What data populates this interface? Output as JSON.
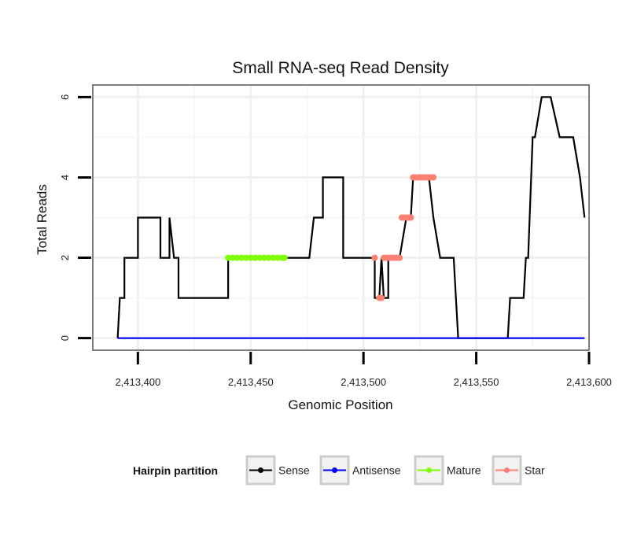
{
  "chart_data": {
    "type": "line",
    "title": "Small RNA-seq Read Density",
    "xlabel": "Genomic Position",
    "ylabel": "Total Reads",
    "xlim": [
      2413380,
      2413600
    ],
    "ylim": [
      -0.3,
      6.3
    ],
    "grid": true,
    "legend_position": "bottom",
    "x_ticks": [
      2413400,
      2413450,
      2413500,
      2413550,
      2413600
    ],
    "x_tick_labels": [
      "2,413,400",
      "2,413,450",
      "2,413,500",
      "2,413,550",
      "2,413,600"
    ],
    "y_ticks": [
      0,
      2,
      4,
      6
    ],
    "y_tick_labels": [
      "0",
      "2",
      "4",
      "6"
    ],
    "legend": {
      "title": "Hairpin partition",
      "entries": [
        "Sense",
        "Antisense",
        "Mature",
        "Star"
      ]
    },
    "series": [
      {
        "name": "Sense",
        "color": "#000000",
        "style": "line",
        "x": [
          2413391,
          2413392,
          2413392,
          2413394,
          2413394,
          2413400,
          2413400,
          2413407,
          2413407,
          2413410,
          2413410,
          2413413,
          2413414,
          2413414,
          2413416,
          2413418,
          2413418,
          2413440,
          2413440,
          2413463,
          2413468,
          2413476,
          2413478,
          2413481,
          2413482,
          2413482,
          2413490,
          2413491,
          2413491,
          2413501,
          2413505,
          2413505,
          2413507,
          2413508,
          2413509,
          2413511,
          2413511,
          2413514,
          2413516,
          2413519,
          2413521,
          2413522,
          2413523,
          2413529,
          2413531,
          2413531,
          2413534,
          2413535,
          2413536,
          2413540,
          2413542,
          2413564,
          2413565,
          2413571,
          2413572,
          2413573,
          2413575,
          2413576,
          2413579,
          2413582,
          2413583,
          2413587,
          2413588,
          2413589,
          2413593,
          2413596,
          2413596,
          2413598
        ],
        "values": [
          0,
          1,
          1,
          1,
          2,
          2,
          3,
          3,
          3,
          3,
          2,
          2,
          2,
          3,
          2,
          2,
          1,
          1,
          2,
          2,
          2,
          2,
          3,
          3,
          3,
          4,
          4,
          4,
          2,
          2,
          2,
          1,
          1,
          2,
          1,
          1,
          2,
          2,
          2,
          3,
          3,
          4,
          4,
          4,
          3,
          3,
          2,
          2,
          2,
          2,
          0,
          0,
          1,
          1,
          2,
          2,
          5,
          5,
          6,
          6,
          6,
          5,
          5,
          5,
          5,
          4,
          4,
          3
        ]
      },
      {
        "name": "Antisense",
        "color": "#0000ff",
        "style": "line",
        "x": [
          2413391,
          2413598
        ],
        "values": [
          0,
          0
        ]
      },
      {
        "name": "Mature",
        "color": "#7fff00",
        "style": "points",
        "x": [
          2413440,
          2413442,
          2413444,
          2413446,
          2413448,
          2413450,
          2413452,
          2413454,
          2413456,
          2413458,
          2413460,
          2413462,
          2413464,
          2413465
        ],
        "values": [
          2,
          2,
          2,
          2,
          2,
          2,
          2,
          2,
          2,
          2,
          2,
          2,
          2,
          2
        ]
      },
      {
        "name": "Star",
        "color": "#fa8072",
        "style": "points",
        "x": [
          2413505,
          2413507,
          2413508,
          2413509,
          2413510,
          2413511,
          2413512,
          2413513,
          2413514,
          2413515,
          2413516,
          2413517,
          2413518,
          2413519,
          2413520,
          2413521,
          2413522,
          2413523,
          2413524,
          2413525,
          2413526,
          2413527,
          2413528,
          2413529,
          2413530,
          2413531
        ],
        "values": [
          2,
          1,
          1,
          2,
          2,
          2,
          2,
          2,
          2,
          2,
          2,
          3,
          3,
          3,
          3,
          3,
          4,
          4,
          4,
          4,
          4,
          4,
          4,
          4,
          4,
          4
        ]
      }
    ]
  }
}
